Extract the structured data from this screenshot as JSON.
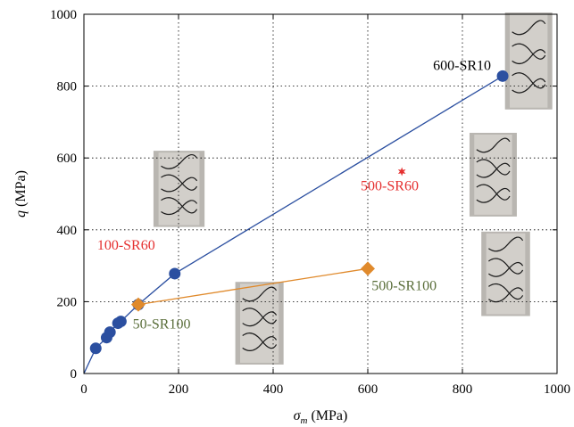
{
  "chart_data": {
    "type": "scatter",
    "xlabel_symbol": "σ",
    "xlabel_sub": "m",
    "xlabel_unit": " (MPa)",
    "ylabel_symbol": "q",
    "ylabel_unit": " (MPa)",
    "xlim": [
      0,
      1000
    ],
    "ylim": [
      0,
      1000
    ],
    "xticks": [
      0,
      200,
      400,
      600,
      800,
      1000
    ],
    "yticks": [
      0,
      200,
      400,
      600,
      800,
      1000
    ],
    "grid": true,
    "series": [
      {
        "marker": "circle",
        "color": "#2b4fa0",
        "line": true,
        "points": [
          [
            0,
            0
          ],
          [
            25,
            70
          ],
          [
            48,
            100
          ],
          [
            55,
            115
          ],
          [
            72,
            140
          ],
          [
            78,
            145
          ],
          [
            115,
            192
          ],
          [
            192,
            278
          ],
          [
            885,
            828
          ]
        ]
      },
      {
        "marker": "diamond",
        "color": "#e08a2c",
        "line": true,
        "points": [
          [
            115,
            192
          ],
          [
            600,
            292
          ]
        ]
      },
      {
        "marker": "star",
        "color": "#e53030",
        "line": false,
        "points": [
          [
            672,
            562
          ]
        ]
      }
    ],
    "annotations": [
      {
        "text": "600-SR10",
        "color": "#000000",
        "x": 738,
        "y": 845
      },
      {
        "text": "500-SR60",
        "color": "#e53030",
        "x": 585,
        "y": 510
      },
      {
        "text": "100-SR60",
        "color": "#e53030",
        "x": 28,
        "y": 345
      },
      {
        "text": "500-SR100",
        "color": "#5a6e3a",
        "x": 608,
        "y": 232
      },
      {
        "text": "50-SR100",
        "color": "#5a6e3a",
        "x": 103,
        "y": 125
      }
    ],
    "specimen_photos": [
      {
        "id": "600-SR10",
        "x0": 890,
        "x1": 990,
        "y0": 735,
        "y1": 1005
      },
      {
        "id": "100-SR60",
        "x0": 147,
        "x1": 255,
        "y0": 408,
        "y1": 620
      },
      {
        "id": "500-SR60",
        "x0": 815,
        "x1": 915,
        "y0": 437,
        "y1": 670
      },
      {
        "id": "500-SR100",
        "x0": 840,
        "x1": 943,
        "y0": 160,
        "y1": 395
      },
      {
        "id": "50-SR100",
        "x0": 320,
        "x1": 422,
        "y0": 25,
        "y1": 255
      }
    ]
  }
}
